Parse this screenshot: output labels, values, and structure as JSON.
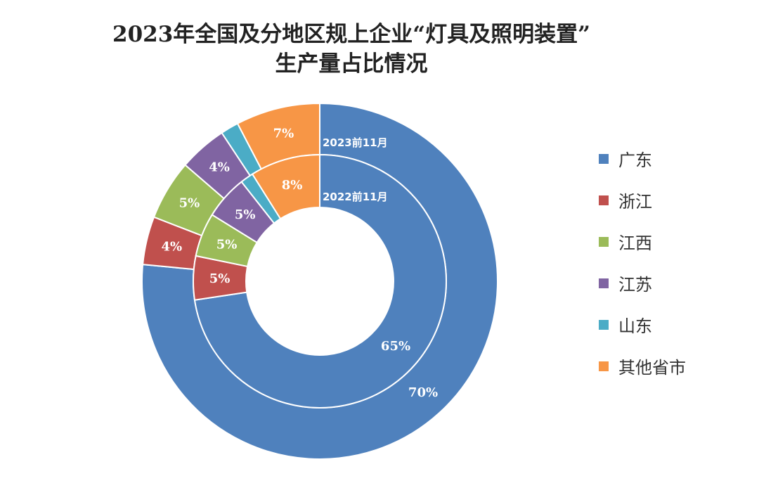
{
  "chart_data": {
    "type": "pie",
    "title_line1": "2023年全国及分地区规上企业“灯具及照明装置”",
    "title_line2": "生产量占比情况",
    "categories": [
      "广东",
      "浙江",
      "江西",
      "江苏",
      "山东",
      "其他省市"
    ],
    "colors": [
      "#4f81bd",
      "#c0504d",
      "#9bbb59",
      "#8064a2",
      "#4bacc6",
      "#f79646"
    ],
    "series": [
      {
        "name": "2023前11月",
        "ring": "outer",
        "values": [
          70,
          4,
          5,
          4,
          1.5,
          7
        ],
        "labels": [
          "70%",
          "4%",
          "5%",
          "4%",
          "",
          "7%"
        ]
      },
      {
        "name": "2022前11月",
        "ring": "inner",
        "values": [
          65,
          5,
          5,
          5,
          1.5,
          8
        ],
        "labels": [
          "65%",
          "5%",
          "5%",
          "5%",
          "",
          "8%"
        ]
      }
    ],
    "legend_position": "right"
  }
}
